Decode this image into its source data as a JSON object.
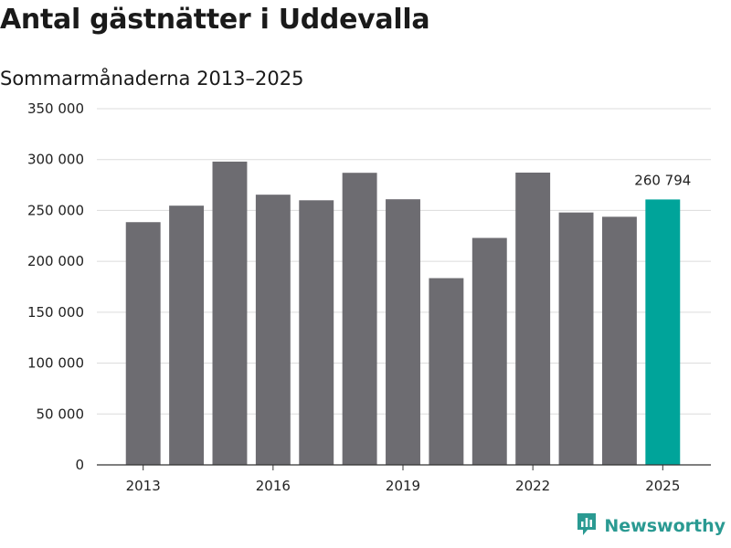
{
  "header": {
    "title": "Antal gästnätter i Uddevalla",
    "subtitle": "Sommarmånaderna 2013–2025"
  },
  "brand": {
    "name": "Newsworthy",
    "icon": "newsworthy-logo-icon",
    "color": "#2a9a92"
  },
  "colors": {
    "bar": "#6d6c71",
    "highlight": "#00a49a",
    "grid": "#dcdcdc",
    "axis": "#333333"
  },
  "chart_data": {
    "type": "bar",
    "title": "Antal gästnätter i Uddevalla",
    "subtitle": "Sommarmånaderna 2013–2025",
    "xlabel": "",
    "ylabel": "",
    "categories": [
      2013,
      2014,
      2015,
      2016,
      2017,
      2018,
      2019,
      2020,
      2021,
      2022,
      2023,
      2024,
      2025
    ],
    "values": [
      238500,
      254700,
      298000,
      265500,
      260000,
      287000,
      261000,
      183500,
      223000,
      287200,
      248000,
      243800,
      260794
    ],
    "highlight_index": 12,
    "data_labels": [
      {
        "index": 12,
        "text": "260 794"
      }
    ],
    "x_tick_labels": [
      "2013",
      "2016",
      "2019",
      "2022",
      "2025"
    ],
    "x_tick_values": [
      2013,
      2016,
      2019,
      2022,
      2025
    ],
    "y_tick_values": [
      0,
      50000,
      100000,
      150000,
      200000,
      250000,
      300000,
      350000
    ],
    "y_tick_labels": [
      "0",
      "50 000",
      "100 000",
      "150 000",
      "200 000",
      "250 000",
      "300 000",
      "350 000"
    ],
    "ylim": [
      0,
      350000
    ],
    "grid": true
  }
}
